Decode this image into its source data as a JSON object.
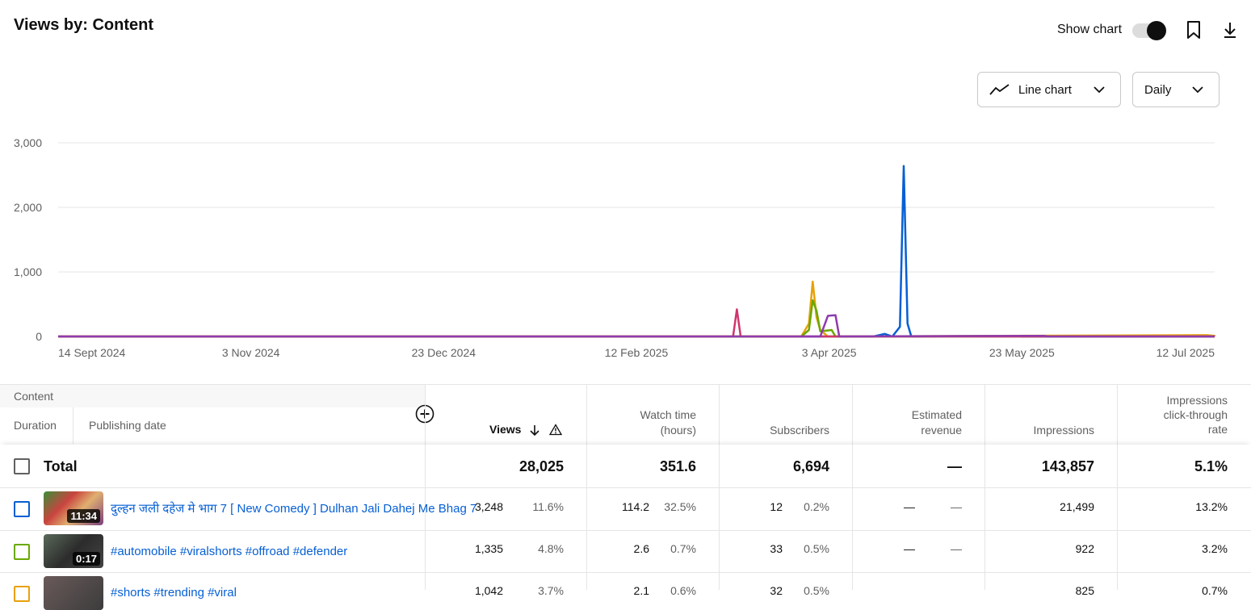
{
  "header": {
    "title": "Views by: Content",
    "show_chart_label": "Show chart",
    "show_chart_on": true,
    "bookmark_icon": "bookmark-icon",
    "download_icon": "download-icon"
  },
  "controls": {
    "chart_type": "Line chart",
    "chart_type_icon": "line-chart-icon",
    "granularity": "Daily"
  },
  "chart_data": {
    "type": "line",
    "y_ticks": [
      "3,000",
      "2,000",
      "1,000",
      "0"
    ],
    "ylim": [
      0,
      3000
    ],
    "x_ticks": [
      "14 Sept 2024",
      "3 Nov 2024",
      "23 Dec 2024",
      "12 Feb 2025",
      "3 Apr 2025",
      "23 May 2025",
      "12 Jul 2025"
    ],
    "xlim": [
      "2024-09-14",
      "2025-07-16"
    ],
    "grid": true,
    "series": [
      {
        "color": "#065fd4",
        "points": [
          [
            "2025-04-17",
            0
          ],
          [
            "2025-04-20",
            40
          ],
          [
            "2025-04-22",
            0
          ],
          [
            "2025-04-24",
            150
          ],
          [
            "2025-04-25",
            2640
          ],
          [
            "2025-04-26",
            200
          ],
          [
            "2025-04-27",
            0
          ],
          [
            "2025-05-25",
            10
          ],
          [
            "2025-05-26",
            0
          ]
        ]
      },
      {
        "color": "#e8a10b",
        "points": [
          [
            "2025-03-29",
            0
          ],
          [
            "2025-03-31",
            200
          ],
          [
            "2025-04-01",
            850
          ],
          [
            "2025-04-02",
            300
          ],
          [
            "2025-04-03",
            100
          ],
          [
            "2025-04-05",
            0
          ],
          [
            "2025-07-14",
            20
          ],
          [
            "2025-07-16",
            10
          ]
        ]
      },
      {
        "color": "#6ba800",
        "points": [
          [
            "2025-03-29",
            0
          ],
          [
            "2025-03-31",
            100
          ],
          [
            "2025-04-01",
            560
          ],
          [
            "2025-04-02",
            400
          ],
          [
            "2025-04-03",
            80
          ],
          [
            "2025-04-06",
            100
          ],
          [
            "2025-04-07",
            0
          ]
        ]
      },
      {
        "color": "#d1356d",
        "points": [
          [
            "2025-03-11",
            0
          ],
          [
            "2025-03-12",
            420
          ],
          [
            "2025-03-13",
            0
          ]
        ]
      },
      {
        "color": "#8f3bad",
        "points": [
          [
            "2025-04-03",
            0
          ],
          [
            "2025-04-05",
            320
          ],
          [
            "2025-04-07",
            330
          ],
          [
            "2025-04-08",
            0
          ],
          [
            "2025-06-01",
            10
          ],
          [
            "2025-06-02",
            0
          ]
        ]
      }
    ]
  },
  "table": {
    "content_label": "Content",
    "duration_label": "Duration",
    "publishing_date_label": "Publishing date",
    "add_icon": "add-column-icon",
    "columns": {
      "views": "Views",
      "watch_time_1": "Watch time",
      "watch_time_2": "(hours)",
      "subscribers": "Subscribers",
      "revenue_1": "Estimated",
      "revenue_2": "revenue",
      "impressions": "Impressions",
      "ctr_1": "Impressions",
      "ctr_2": "click-through",
      "ctr_3": "rate"
    },
    "total": {
      "label": "Total",
      "views": "28,025",
      "watch_time": "351.6",
      "subscribers": "6,694",
      "revenue": "—",
      "impressions": "143,857",
      "ctr": "5.1%"
    },
    "rows": [
      {
        "color": "#065fd4",
        "duration": "11:34",
        "title": "दुल्हन जली दहेज मे भाग 7 [ New Comedy ] Dulhan Jali Dahej Me Bhag 7",
        "views": "3,248",
        "views_pct": "11.6%",
        "watch_time": "114.2",
        "watch_pct": "32.5%",
        "subscribers": "12",
        "subs_pct": "0.2%",
        "revenue": "—",
        "revenue_pct": "—",
        "impressions": "21,499",
        "ctr": "13.2%"
      },
      {
        "color": "#6ba800",
        "duration": "0:17",
        "title": "#automobile #viralshorts #offroad #defender",
        "views": "1,335",
        "views_pct": "4.8%",
        "watch_time": "2.6",
        "watch_pct": "0.7%",
        "subscribers": "33",
        "subs_pct": "0.5%",
        "revenue": "—",
        "revenue_pct": "—",
        "impressions": "922",
        "ctr": "3.2%"
      },
      {
        "color": "#e8a10b",
        "duration": "",
        "title": "#shorts #trending #viral",
        "views": "1,042",
        "views_pct": "3.7%",
        "watch_time": "2.1",
        "watch_pct": "0.6%",
        "subscribers": "32",
        "subs_pct": "0.5%",
        "revenue": "",
        "revenue_pct": "",
        "impressions": "825",
        "ctr": "0.7%"
      }
    ]
  }
}
